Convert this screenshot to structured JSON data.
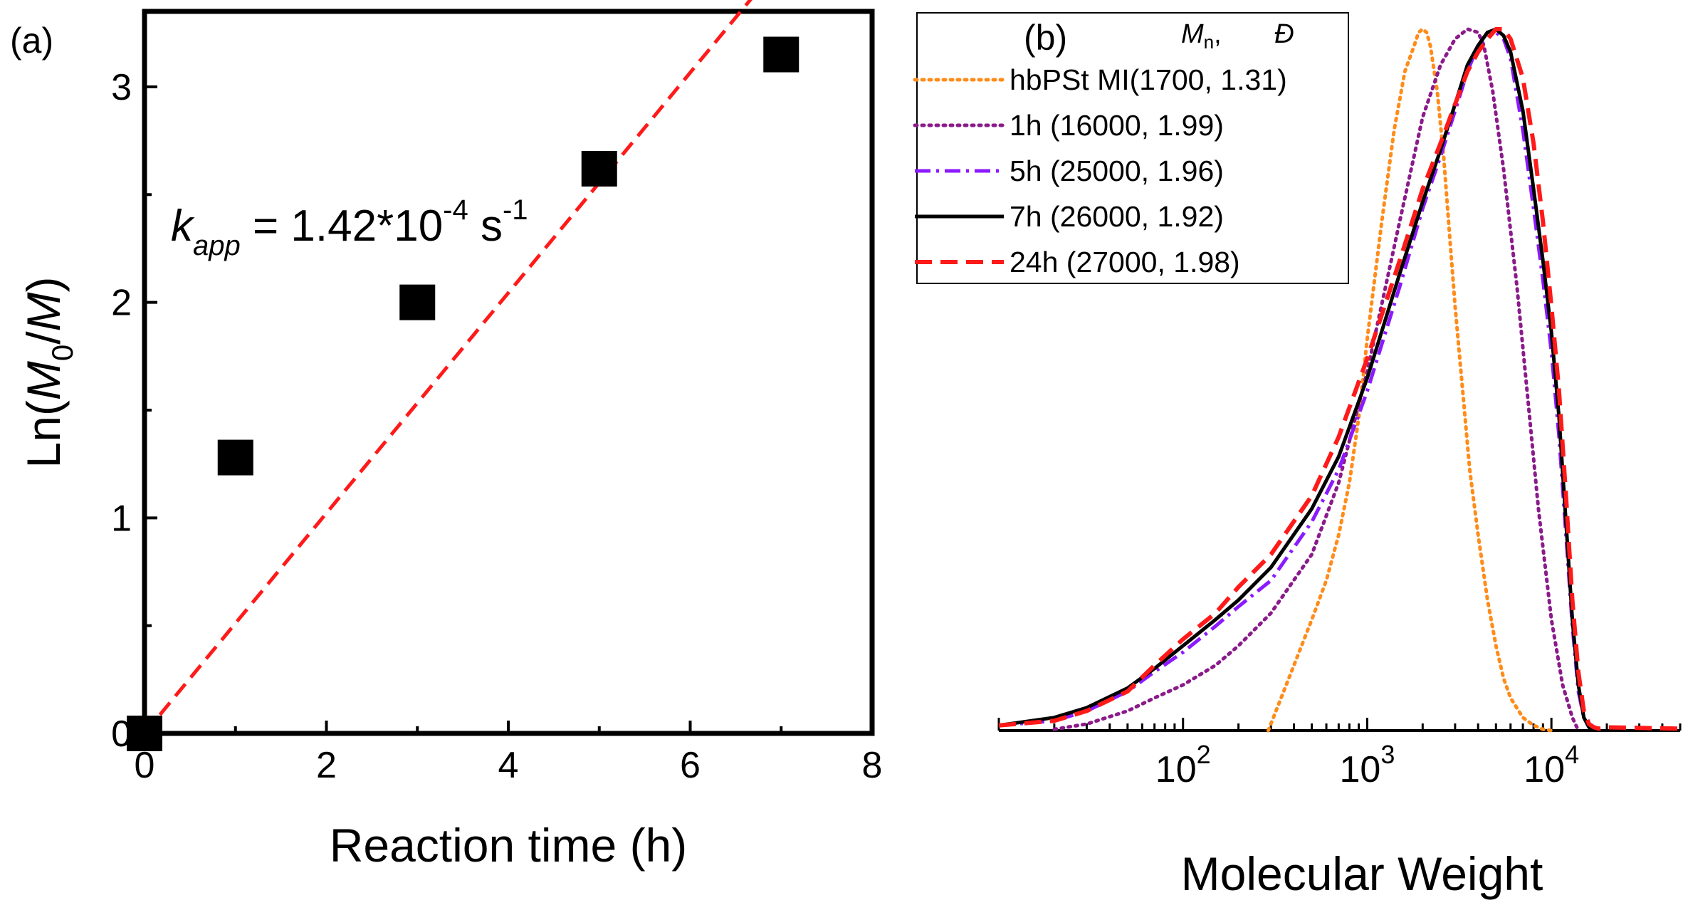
{
  "chart_data": [
    {
      "panel": "(a)",
      "type": "scatter",
      "xlabel": "Reaction time (h)",
      "ylabel": {
        "prefix": "Ln(",
        "m0": "M",
        "sub0": "0",
        "slash": "/",
        "m": "M",
        "suffix": ")"
      },
      "xlim": [
        0,
        8
      ],
      "ylim": [
        0,
        3.35
      ],
      "xticks": [
        0,
        2,
        4,
        6,
        8
      ],
      "yticks": [
        0,
        1,
        2,
        3
      ],
      "series": [
        {
          "name": "data",
          "marker": "square",
          "color": "#000000",
          "x": [
            0,
            1,
            3,
            5,
            7
          ],
          "y": [
            0,
            1.28,
            2.0,
            2.62,
            3.15
          ]
        }
      ],
      "fit": {
        "type": "linear",
        "slope": 0.511,
        "intercept": 0,
        "x_range": [
          0,
          6.7
        ],
        "color": "#ff1a1a",
        "style": "dashed"
      },
      "annotation": {
        "k": "k",
        "sub": "app",
        "eq": " = 1.42*10",
        "exp": "-4",
        "unit": " s",
        "unitexp": "-1"
      }
    },
    {
      "panel": "(b)",
      "type": "line",
      "xscale": "log",
      "xlabel": "Molecular Weight",
      "xlim": [
        10,
        50000
      ],
      "ylim": [
        0,
        1.1
      ],
      "xticks": [
        {
          "value": 100,
          "base": "10",
          "exp": "2"
        },
        {
          "value": 1000,
          "base": "10",
          "exp": "3"
        },
        {
          "value": 10000,
          "base": "10",
          "exp": "4"
        }
      ],
      "legend": {
        "header_mn": "M",
        "header_mn_sub": "n",
        "header_comma": ",",
        "header_d": "Đ"
      },
      "series": [
        {
          "name": "hbPSt MI(1700, 1.31)",
          "color": "#ff8c1a",
          "style": "dotted",
          "x": [
            290,
            330,
            400,
            500,
            600,
            700,
            800,
            900,
            1000,
            1200,
            1400,
            1600,
            1800,
            1900,
            2000,
            2100,
            2200,
            2400,
            2600,
            2800,
            3000,
            3300,
            3600,
            4000,
            4500,
            5000,
            5500,
            6000,
            7000,
            8000,
            9000,
            10000
          ],
          "y": [
            0,
            0.04,
            0.1,
            0.17,
            0.23,
            0.3,
            0.38,
            0.48,
            0.6,
            0.78,
            0.92,
            1.01,
            1.05,
            1.07,
            1.075,
            1.07,
            1.05,
            0.98,
            0.88,
            0.76,
            0.65,
            0.52,
            0.4,
            0.3,
            0.2,
            0.13,
            0.08,
            0.05,
            0.02,
            0.008,
            0.002,
            0
          ]
        },
        {
          "name": "1h (16000, 1.99)",
          "color": "#8b1a8b",
          "style": "dotted",
          "x": [
            20,
            30,
            50,
            70,
            100,
            150,
            200,
            300,
            500,
            700,
            1000,
            1500,
            2000,
            2500,
            3000,
            3500,
            4000,
            4300,
            4800,
            5500,
            6500,
            7500,
            8500,
            10000,
            11500,
            13000,
            14000
          ],
          "y": [
            0.002,
            0.01,
            0.03,
            0.05,
            0.07,
            0.1,
            0.13,
            0.18,
            0.27,
            0.38,
            0.55,
            0.78,
            0.94,
            1.02,
            1.06,
            1.075,
            1.07,
            1.05,
            0.98,
            0.86,
            0.68,
            0.5,
            0.34,
            0.17,
            0.07,
            0.02,
            0
          ]
        },
        {
          "name": "5h (25000, 1.96)",
          "color": "#8c1aff",
          "style": "dashdot",
          "x": [
            10,
            20,
            30,
            50,
            70,
            100,
            150,
            200,
            300,
            500,
            700,
            1000,
            1500,
            2000,
            2500,
            3000,
            3500,
            4000,
            4500,
            5000,
            5500,
            6000,
            7000,
            8000,
            9000,
            10000,
            11000,
            12000,
            13000,
            14000,
            15000,
            16000,
            17000
          ],
          "y": [
            0.008,
            0.015,
            0.03,
            0.06,
            0.09,
            0.12,
            0.16,
            0.19,
            0.23,
            0.32,
            0.4,
            0.52,
            0.68,
            0.8,
            0.88,
            0.95,
            1.01,
            1.05,
            1.07,
            1.07,
            1.06,
            1.03,
            0.92,
            0.8,
            0.69,
            0.58,
            0.45,
            0.3,
            0.16,
            0.06,
            0.02,
            0.005,
            0
          ]
        },
        {
          "name": "7h (26000, 1.92)",
          "color": "#000000",
          "style": "solid",
          "x": [
            10,
            20,
            30,
            50,
            70,
            100,
            150,
            200,
            300,
            500,
            700,
            1000,
            1500,
            2000,
            2500,
            3000,
            3500,
            4000,
            4500,
            5000,
            5500,
            6000,
            7000,
            8000,
            9000,
            10000,
            11000,
            12000,
            13000,
            14000,
            15000,
            16000,
            17000
          ],
          "y": [
            0.008,
            0.02,
            0.035,
            0.065,
            0.095,
            0.13,
            0.17,
            0.2,
            0.25,
            0.34,
            0.42,
            0.54,
            0.7,
            0.81,
            0.89,
            0.96,
            1.02,
            1.05,
            1.07,
            1.075,
            1.065,
            1.04,
            0.95,
            0.83,
            0.72,
            0.61,
            0.48,
            0.32,
            0.17,
            0.07,
            0.02,
            0.005,
            0
          ]
        },
        {
          "name": "24h (27000, 1.98)",
          "color": "#ff1a1a",
          "style": "dashed",
          "x": [
            10,
            20,
            30,
            50,
            70,
            100,
            150,
            200,
            300,
            500,
            700,
            1000,
            1500,
            2000,
            2500,
            3000,
            3500,
            4000,
            4500,
            5000,
            5500,
            6000,
            7000,
            8000,
            9000,
            10000,
            11000,
            12000,
            13000,
            14000,
            15000,
            16000,
            17000,
            18000,
            20000,
            30000,
            50000
          ],
          "y": [
            0.008,
            0.015,
            0.03,
            0.06,
            0.1,
            0.14,
            0.18,
            0.22,
            0.27,
            0.36,
            0.45,
            0.57,
            0.72,
            0.83,
            0.9,
            0.96,
            1.01,
            1.04,
            1.06,
            1.075,
            1.075,
            1.06,
            1.0,
            0.9,
            0.78,
            0.65,
            0.52,
            0.36,
            0.2,
            0.09,
            0.03,
            0.01,
            0.005,
            0.003,
            0.005,
            0.004,
            0.003
          ]
        }
      ]
    }
  ]
}
